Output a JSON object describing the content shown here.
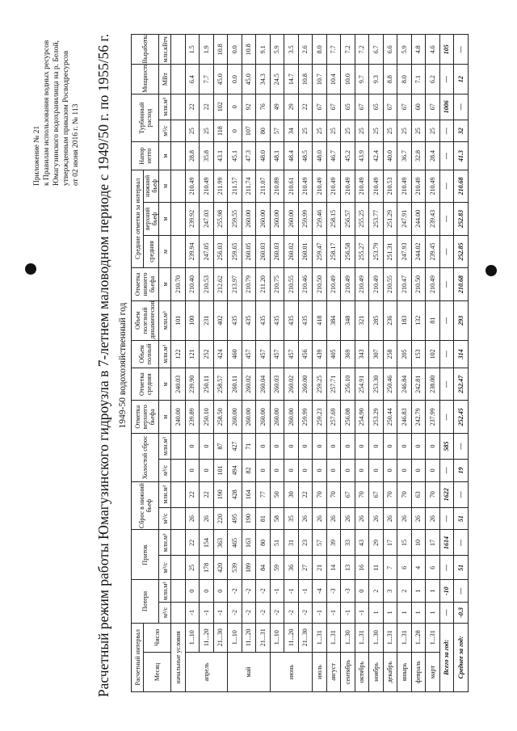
{
  "header": {
    "lines": [
      "Приложение № 21",
      "к Правилам использования водных ресурсов",
      "Юмагузинского водохранилища на р. Белой,",
      "утвержденным приказом Росводресурсов",
      "от 02 июня 2016 г. № 113"
    ]
  },
  "title": "Расчетный режим работы Юмагузинского гидроузла в 7-летнем маловодном периоде с 1949/50 г. по 1955/56 г.",
  "subtitle": "1949-50 водохозяйственный год",
  "table": {
    "head": {
      "interval": "Расчетный интервал",
      "losses": "Потери",
      "inflow": "Приток",
      "release": "Сброс в нижний бьеф",
      "idle": "Холостой сброс",
      "upper_level": "Отметка верхнего бьефа",
      "mean_level": "Отметка средняя",
      "full_volume": "Объем полный",
      "useful_volume": "Объем полезный динамический",
      "lower_level": "Отметка нижнего бьефа",
      "avg_levels": "Средние отметки за интервал",
      "head_net": "Напор нетто",
      "turbine": "Турбинный расход",
      "power": "Мощность",
      "output": "Выработка",
      "month": "Месяц",
      "day": "Число",
      "avg_mean": "средняя",
      "avg_upper": "верхний бьеф",
      "avg_lower": "нижний бьеф"
    },
    "units": [
      "м³/с",
      "млн.м³",
      "м³/с",
      "млн.м³",
      "м³/с",
      "млн.м³",
      "м³/с",
      "млн.м³",
      "м",
      "м",
      "млн.м³",
      "млн.м³",
      "м",
      "м",
      "м",
      "м",
      "м",
      "м³/с",
      "млн.м³",
      "МВт",
      "млн.кВтч"
    ],
    "rows": [
      {
        "label": "начальные условия",
        "cells": [
          null,
          null,
          null,
          null,
          null,
          null,
          null,
          null,
          "240.00",
          "240.03",
          "122",
          "101",
          "210.70",
          null,
          null,
          null,
          null,
          null,
          null,
          null,
          null
        ]
      },
      {
        "month": "апрель",
        "day": "1...10",
        "cells": [
          "-1",
          "0",
          "25",
          "22",
          "26",
          "22",
          "0",
          "0",
          "239.89",
          "239.90",
          "121",
          "100",
          "210.40",
          "239.94",
          "239.92",
          "210.49",
          "28.8",
          "25",
          "22",
          "6.4",
          "1.5"
        ]
      },
      {
        "day": "11...20",
        "cells": [
          "-1",
          "0",
          "178",
          "154",
          "26",
          "22",
          "0",
          "0",
          "250.10",
          "250.11",
          "252",
          "231",
          "210.53",
          "247.05",
          "247.03",
          "210.49",
          "35.8",
          "25",
          "22",
          "7.7",
          "1.9"
        ]
      },
      {
        "day": "21...30",
        "cells": [
          "-1",
          "0",
          "420",
          "363",
          "220",
          "190",
          "101",
          "87",
          "258.50",
          "258.57",
          "424",
          "402",
          "212.62",
          "256.03",
          "255.98",
          "211.99",
          "43.1",
          "118",
          "102",
          "45.0",
          "10.8"
        ]
      },
      {
        "month": "май",
        "day": "1...10",
        "cells": [
          "-2",
          "-2",
          "539",
          "465",
          "495",
          "428",
          "494",
          "427",
          "260.00",
          "260.11",
          "460",
          "435",
          "213.97",
          "259.65",
          "259.55",
          "211.57",
          "45.1",
          "0",
          "0",
          "0.0",
          "0.0"
        ]
      },
      {
        "day": "11...20",
        "cells": [
          "-2",
          "-2",
          "189",
          "163",
          "190",
          "164",
          "82",
          "71",
          "260.00",
          "260.02",
          "457",
          "435",
          "210.79",
          "260.05",
          "260.00",
          "211.74",
          "47.3",
          "107",
          "92",
          "45.0",
          "10.8"
        ]
      },
      {
        "day": "21...31",
        "cells": [
          "-2",
          "-2",
          "84",
          "80",
          "81",
          "77",
          "0",
          "0",
          "260.00",
          "260.04",
          "457",
          "435",
          "211.20",
          "260.03",
          "260.00",
          "211.07",
          "48.0",
          "80",
          "76",
          "34.3",
          "9.1"
        ]
      },
      {
        "month": "июнь",
        "day": "1...10",
        "cells": [
          "-2",
          "-1",
          "59",
          "51",
          "58",
          "50",
          "0",
          "0",
          "260.00",
          "260.03",
          "457",
          "435",
          "210.75",
          "260.03",
          "260.00",
          "210.89",
          "48.1",
          "57",
          "49",
          "24.5",
          "5.9"
        ]
      },
      {
        "day": "11...20",
        "cells": [
          "-2",
          "-1",
          "36",
          "31",
          "35",
          "30",
          "0",
          "0",
          "260.00",
          "260.02",
          "457",
          "435",
          "210.55",
          "260.02",
          "260.00",
          "210.61",
          "48.4",
          "34",
          "29",
          "14.7",
          "3.5"
        ]
      },
      {
        "day": "21...30",
        "cells": [
          "-2",
          "-1",
          "27",
          "23",
          "26",
          "22",
          "0",
          "0",
          "259.99",
          "260.00",
          "456",
          "435",
          "210.46",
          "260.01",
          "259.99",
          "210.49",
          "48.5",
          "25",
          "22",
          "10.8",
          "2.6"
        ]
      },
      {
        "month": "июль",
        "day": "1...31",
        "cells": [
          "-1",
          "-4",
          "21",
          "57",
          "26",
          "70",
          "0",
          "0",
          "259.23",
          "259.25",
          "439",
          "418",
          "210.50",
          "259.47",
          "259.46",
          "210.49",
          "48.0",
          "25",
          "67",
          "10.7",
          "8.0"
        ]
      },
      {
        "month": "август",
        "day": "1...31",
        "cells": [
          "-1",
          "-3",
          "14",
          "39",
          "26",
          "70",
          "0",
          "0",
          "257.69",
          "257.71",
          "405",
          "384",
          "210.49",
          "258.17",
          "258.15",
          "210.49",
          "46.7",
          "25",
          "67",
          "10.4",
          "7.7"
        ]
      },
      {
        "month": "сентябрь",
        "day": "1...30",
        "cells": [
          "-1",
          "-3",
          "13",
          "33",
          "26",
          "67",
          "0",
          "0",
          "256.08",
          "256.10",
          "369",
          "348",
          "210.49",
          "256.58",
          "256.57",
          "210.49",
          "45.2",
          "25",
          "65",
          "10.0",
          "7.2"
        ]
      },
      {
        "month": "октябрь",
        "day": "1...31",
        "cells": [
          "-1",
          "0",
          "16",
          "43",
          "26",
          "70",
          "0",
          "0",
          "254.90",
          "254.91",
          "343",
          "321",
          "210.49",
          "255.27",
          "255.25",
          "210.49",
          "43.9",
          "25",
          "67",
          "9.7",
          "7.2"
        ]
      },
      {
        "month": "ноябрь",
        "day": "1...30",
        "cells": [
          "1",
          "2",
          "11",
          "29",
          "26",
          "67",
          "0",
          "0",
          "253.29",
          "253.30",
          "307",
          "285",
          "210.49",
          "253.79",
          "253.77",
          "210.49",
          "42.4",
          "25",
          "65",
          "9.3",
          "6.7"
        ]
      },
      {
        "month": "декабрь",
        "day": "1...31",
        "cells": [
          "1",
          "3",
          "7",
          "17",
          "26",
          "70",
          "0",
          "0",
          "250.44",
          "250.46",
          "258",
          "236",
          "210.55",
          "251.31",
          "251.29",
          "210.53",
          "40.0",
          "25",
          "67",
          "8.8",
          "6.6"
        ]
      },
      {
        "month": "январь",
        "day": "1...31",
        "cells": [
          "1",
          "2",
          "6",
          "15",
          "26",
          "70",
          "0",
          "0",
          "246.83",
          "246.84",
          "205",
          "183",
          "210.47",
          "247.93",
          "247.91",
          "210.49",
          "36.7",
          "25",
          "67",
          "8.0",
          "5.9"
        ]
      },
      {
        "month": "февраль",
        "day": "1...28",
        "cells": [
          "1",
          "1",
          "4",
          "10",
          "26",
          "63",
          "0",
          "0",
          "242.79",
          "242.81",
          "153",
          "132",
          "210.50",
          "244.02",
          "244.00",
          "210.49",
          "32.8",
          "25",
          "60",
          "7.1",
          "4.8"
        ]
      },
      {
        "month": "март",
        "day": "1...31",
        "cells": [
          "1",
          "1",
          "6",
          "17",
          "26",
          "70",
          "0",
          "0",
          "237.99",
          "238.00",
          "102",
          "81",
          "210.49",
          "239.45",
          "239.43",
          "210.49",
          "28.4",
          "25",
          "67",
          "6.2",
          "4.6"
        ]
      },
      {
        "label": "Всего за год:",
        "bold": true,
        "cells": [
          "—",
          "-10",
          "—",
          "1614",
          "—",
          "1622",
          "—",
          "585",
          "—",
          "—",
          "—",
          "—",
          "—",
          "—",
          "—",
          "—",
          "—",
          "—",
          "1006",
          "—",
          "105"
        ]
      },
      {
        "label": "Среднее за год:",
        "bold": true,
        "cells": [
          "-0.3",
          "—",
          "51",
          "—",
          "51",
          "—",
          "19",
          "—",
          "252.45",
          "252.47",
          "314",
          "293",
          "210.68",
          "252.85",
          "252.83",
          "210.68",
          "41.3",
          "32",
          "—",
          "12",
          "—"
        ]
      }
    ]
  }
}
